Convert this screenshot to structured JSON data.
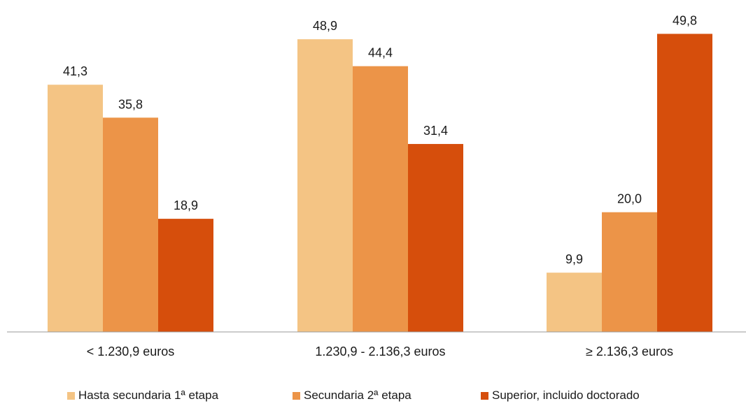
{
  "chart_data": {
    "type": "bar",
    "categories": [
      "< 1.230,9 euros",
      "1.230,9 - 2.136,3 euros",
      "≥ 2.136,3 euros"
    ],
    "series": [
      {
        "name": "Hasta secundaria 1ª etapa",
        "color": "#F4C484",
        "values": [
          41.3,
          48.9,
          9.9
        ],
        "labels": [
          "41,3",
          "48,9",
          "9,9"
        ]
      },
      {
        "name": "Secundaria 2ª etapa",
        "color": "#EC9448",
        "values": [
          35.8,
          44.4,
          20.0
        ],
        "labels": [
          "35,8",
          "44,4",
          "20,0"
        ]
      },
      {
        "name": "Superior, incluido doctorado",
        "color": "#D64E0C",
        "values": [
          18.9,
          31.4,
          49.8
        ],
        "labels": [
          "18,9",
          "31,4",
          "49,8"
        ]
      }
    ],
    "title": "",
    "xlabel": "",
    "ylabel": "",
    "ylim": [
      0,
      50
    ],
    "grid": false,
    "legend": "bottom"
  }
}
